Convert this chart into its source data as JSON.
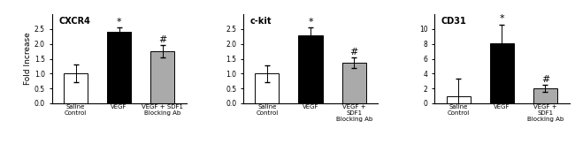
{
  "charts": [
    {
      "title": "CXCR4",
      "ylabel": "Fold Increase",
      "ylim": [
        0,
        3
      ],
      "yticks": [
        0,
        0.5,
        1.0,
        1.5,
        2.0,
        2.5
      ],
      "bars": [
        1.0,
        2.42,
        1.75
      ],
      "errors": [
        0.3,
        0.13,
        0.2
      ],
      "colors": [
        "white",
        "black",
        "#aaaaaa"
      ],
      "significance": [
        "",
        "*",
        "#"
      ],
      "sig_y": [
        null,
        2.58,
        1.98
      ],
      "xlabels": [
        "Saline\nControl",
        "VEGF",
        "VEGF + SDF1\nBlocking Ab"
      ]
    },
    {
      "title": "c-kit",
      "ylabel": "",
      "ylim": [
        0,
        3
      ],
      "yticks": [
        0,
        0.5,
        1.0,
        1.5,
        2.0,
        2.5
      ],
      "bars": [
        1.0,
        2.3,
        1.38
      ],
      "errors": [
        0.28,
        0.25,
        0.18
      ],
      "colors": [
        "white",
        "black",
        "#aaaaaa"
      ],
      "significance": [
        "",
        "*",
        "#"
      ],
      "sig_y": [
        null,
        2.58,
        1.58
      ],
      "xlabels": [
        "Saline\nControl",
        "VEGF",
        "VEGF +\nSDF1\nBlocking Ab"
      ]
    },
    {
      "title": "CD31",
      "ylabel": "",
      "ylim": [
        0,
        12
      ],
      "yticks": [
        0,
        2,
        4,
        6,
        8,
        10
      ],
      "bars": [
        1.0,
        8.1,
        2.0
      ],
      "errors": [
        2.3,
        2.5,
        0.5
      ],
      "colors": [
        "white",
        "black",
        "#aaaaaa"
      ],
      "significance": [
        "",
        "*",
        "#"
      ],
      "sig_y": [
        null,
        10.8,
        2.6
      ],
      "xlabels": [
        "Saline\nControl",
        "VEGF",
        "VEGF +\nSDF1\nBlocking Ab"
      ]
    }
  ],
  "bar_width": 0.55,
  "edgecolor": "black",
  "capsize": 2,
  "fontsize_title": 7,
  "fontsize_tick": 5.5,
  "fontsize_ylabel": 6.5,
  "fontsize_sig": 8,
  "fontsize_xlabel": 5.0
}
